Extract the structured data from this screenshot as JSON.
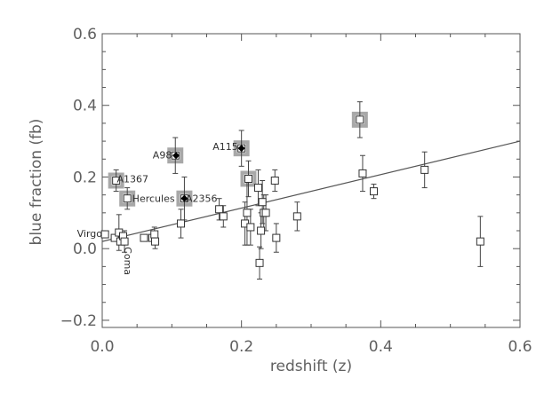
{
  "chart_data": {
    "type": "scatter",
    "xlabel": "redshift (z)",
    "ylabel": "blue fraction (fb)",
    "xlim": [
      0.0,
      0.6
    ],
    "ylim": [
      -0.22,
      0.6
    ],
    "x_ticks": [
      {
        "value": 0.0,
        "label": "0.0"
      },
      {
        "value": 0.2,
        "label": "0.2"
      },
      {
        "value": 0.4,
        "label": "0.4"
      },
      {
        "value": 0.6,
        "label": "0.6"
      }
    ],
    "y_ticks": [
      {
        "value": -0.2,
        "label": "−0.2"
      },
      {
        "value": 0.0,
        "label": "0.0"
      },
      {
        "value": 0.2,
        "label": "0.2"
      },
      {
        "value": 0.4,
        "label": "0.4"
      },
      {
        "value": 0.6,
        "label": "0.6"
      }
    ],
    "grid": false,
    "trend_line": {
      "x": [
        0.0,
        0.6
      ],
      "y": [
        0.02,
        0.3
      ]
    },
    "highlighted_points": [
      {
        "x": 0.02,
        "y": 0.19
      },
      {
        "x": 0.036,
        "y": 0.14
      },
      {
        "x": 0.105,
        "y": 0.26
      },
      {
        "x": 0.118,
        "y": 0.14
      },
      {
        "x": 0.2,
        "y": 0.28
      },
      {
        "x": 0.21,
        "y": 0.195
      },
      {
        "x": 0.37,
        "y": 0.36
      }
    ],
    "filled_points": [
      {
        "x": 0.106,
        "y": 0.26
      },
      {
        "x": 0.118,
        "y": 0.14
      },
      {
        "x": 0.2,
        "y": 0.28
      }
    ],
    "points": [
      {
        "x": 0.004,
        "y": 0.04
      },
      {
        "x": 0.018,
        "y": 0.03
      },
      {
        "x": 0.02,
        "y": 0.19,
        "yerr": 0.03
      },
      {
        "x": 0.024,
        "y": 0.045,
        "yerr": 0.05
      },
      {
        "x": 0.026,
        "y": 0.02
      },
      {
        "x": 0.03,
        "y": 0.035
      },
      {
        "x": 0.032,
        "y": 0.02,
        "yerr": 0.03
      },
      {
        "x": 0.036,
        "y": 0.14,
        "yerr": 0.03
      },
      {
        "x": 0.06,
        "y": 0.03
      },
      {
        "x": 0.072,
        "y": 0.03
      },
      {
        "x": 0.075,
        "y": 0.04,
        "yerr": 0.02
      },
      {
        "x": 0.076,
        "y": 0.02,
        "yerr": 0.02
      },
      {
        "x": 0.105,
        "y": 0.26,
        "yerr": 0.05
      },
      {
        "x": 0.113,
        "y": 0.07,
        "yerr": 0.04
      },
      {
        "x": 0.118,
        "y": 0.14,
        "yerr": 0.06
      },
      {
        "x": 0.168,
        "y": 0.11,
        "yerr": 0.03
      },
      {
        "x": 0.174,
        "y": 0.09,
        "yerr": 0.03
      },
      {
        "x": 0.2,
        "y": 0.28,
        "yerr": 0.05
      },
      {
        "x": 0.205,
        "y": 0.07,
        "yerr": 0.06
      },
      {
        "x": 0.208,
        "y": 0.1,
        "yerr": 0.09
      },
      {
        "x": 0.21,
        "y": 0.195,
        "yerr": 0.05
      },
      {
        "x": 0.213,
        "y": 0.06,
        "yerr": 0.05
      },
      {
        "x": 0.224,
        "y": 0.17,
        "yerr": 0.05
      },
      {
        "x": 0.226,
        "y": -0.04,
        "yerr": 0.045
      },
      {
        "x": 0.228,
        "y": 0.05,
        "yerr": 0.05
      },
      {
        "x": 0.23,
        "y": 0.13,
        "yerr": 0.06
      },
      {
        "x": 0.232,
        "y": 0.1,
        "yerr": 0.05
      },
      {
        "x": 0.235,
        "y": 0.1,
        "yerr": 0.05
      },
      {
        "x": 0.248,
        "y": 0.19,
        "yerr": 0.03
      },
      {
        "x": 0.25,
        "y": 0.03,
        "yerr": 0.04
      },
      {
        "x": 0.28,
        "y": 0.09,
        "yerr": 0.04
      },
      {
        "x": 0.37,
        "y": 0.36,
        "yerr": 0.05
      },
      {
        "x": 0.374,
        "y": 0.21,
        "yerr": 0.05
      },
      {
        "x": 0.39,
        "y": 0.16,
        "yerr": 0.02
      },
      {
        "x": 0.463,
        "y": 0.22,
        "yerr": 0.05
      },
      {
        "x": 0.543,
        "y": 0.02,
        "yerr": 0.07
      }
    ],
    "annotations": [
      {
        "text": "A1367",
        "x": 0.021,
        "y": 0.195,
        "anchor": "start"
      },
      {
        "text": "Hercules",
        "x": 0.043,
        "y": 0.14,
        "anchor": "start"
      },
      {
        "text": "A98",
        "x": 0.1,
        "y": 0.262,
        "anchor": "end"
      },
      {
        "text": "A2356",
        "x": 0.12,
        "y": 0.14,
        "anchor": "start"
      },
      {
        "text": "A115",
        "x": 0.195,
        "y": 0.285,
        "anchor": "end"
      },
      {
        "text": "Virgo",
        "x": 0.0,
        "y": 0.043,
        "anchor": "end"
      }
    ],
    "rotated_annotations": [
      {
        "text": "Coma",
        "x": 0.024,
        "y": 0.005
      }
    ]
  }
}
